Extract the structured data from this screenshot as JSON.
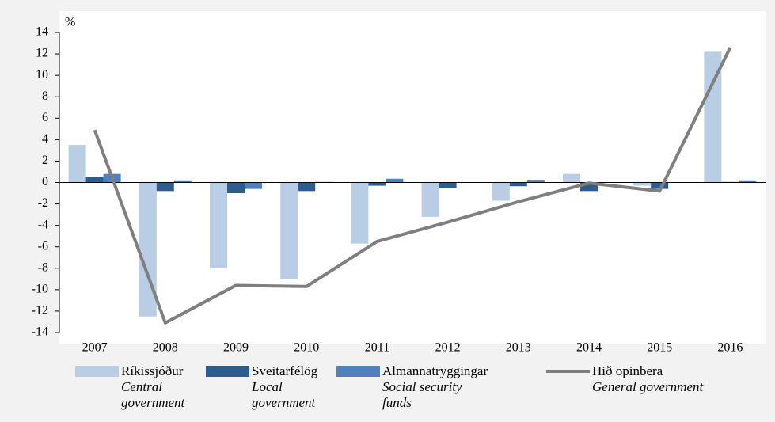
{
  "chart_data": {
    "type": "bar",
    "y_label": "%",
    "categories": [
      "2007",
      "2008",
      "2009",
      "2010",
      "2011",
      "2012",
      "2013",
      "2014",
      "2015",
      "2016"
    ],
    "series": [
      {
        "name": "Ríkissjóður",
        "name_en": "Central government",
        "color": "#b9cde5",
        "values": [
          3.5,
          -12.5,
          -8.0,
          -9.0,
          -5.7,
          -3.2,
          -1.7,
          0.8,
          -0.3,
          12.2
        ]
      },
      {
        "name": "Sveitarfélög",
        "name_en": "Local government",
        "color": "#2d5d8e",
        "values": [
          0.5,
          -0.8,
          -1.0,
          -0.8,
          -0.3,
          -0.5,
          -0.35,
          -0.8,
          -0.6,
          0.05
        ]
      },
      {
        "name": "Almannatryggingar",
        "name_en": "Social security funds",
        "color": "#4f81bd",
        "values": [
          0.8,
          0.2,
          -0.6,
          0.05,
          0.35,
          0.0,
          0.25,
          0.0,
          0.0,
          0.2
        ]
      },
      {
        "name": "Hið opinbera",
        "name_en": "General government",
        "color": "#7f7f7f",
        "type": "line",
        "values": [
          4.9,
          -13.1,
          -9.6,
          -9.7,
          -5.5,
          -3.7,
          -1.8,
          -0.05,
          -0.8,
          12.6
        ]
      }
    ],
    "ylim": [
      -14,
      14
    ],
    "yticks": [
      -14,
      -12,
      -10,
      -8,
      -6,
      -4,
      -2,
      0,
      2,
      4,
      6,
      8,
      10,
      12,
      14
    ],
    "grid": false
  }
}
